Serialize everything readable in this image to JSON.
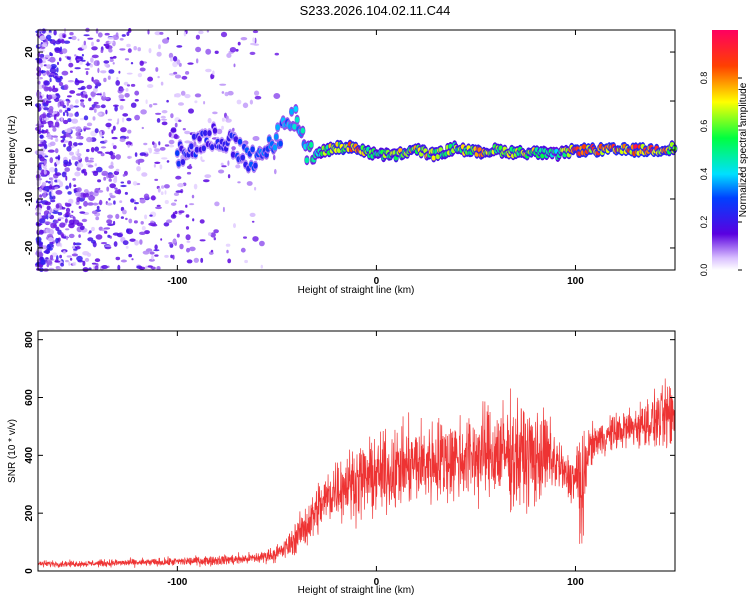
{
  "title": "S233.2026.104.02.11.C44",
  "chart_data": [
    {
      "type": "heatmap",
      "xlabel": "Height of straight line (km)",
      "ylabel": "Frequency (Hz)",
      "xlim": [
        -170,
        150
      ],
      "ylim": [
        -24.5,
        24.5
      ],
      "x_ticks": [
        -100,
        0,
        100
      ],
      "y_ticks": [
        -20,
        -10,
        0,
        10,
        20
      ],
      "colorbar": {
        "label": "Normalized spectral amplitude",
        "range": [
          0,
          1
        ],
        "ticks": [
          0,
          0.2,
          0.4,
          0.6,
          0.8
        ],
        "tick_labels": [
          "0.0",
          "0.2",
          "0.4",
          "0.6",
          "0.8"
        ]
      },
      "ridge": {
        "x": [
          -100,
          -80,
          -70,
          -60,
          -50,
          -40,
          -35,
          -30,
          -20,
          -10,
          0,
          10,
          20,
          30,
          40,
          50,
          60,
          70,
          80,
          90,
          100,
          110,
          120,
          130,
          140,
          150
        ],
        "freq": [
          -0.5,
          3,
          0,
          -3,
          3,
          7,
          0,
          -0.5,
          0.5,
          0.5,
          -1,
          -1,
          0,
          -1,
          0.5,
          -0.5,
          0,
          -0.5,
          -0.5,
          -1,
          0,
          0,
          0,
          0,
          0,
          0.5
        ],
        "amplitude": [
          0.3,
          0.25,
          0.3,
          0.35,
          0.4,
          0.45,
          0.5,
          0.55,
          0.85,
          0.9,
          0.6,
          0.75,
          0.8,
          0.75,
          0.7,
          0.85,
          0.7,
          0.75,
          0.75,
          0.55,
          0.95,
          0.97,
          0.97,
          0.97,
          0.95,
          0.8
        ]
      }
    },
    {
      "type": "line",
      "xlabel": "Height of straight line (km)",
      "ylabel": "SNR (10 * v/v)",
      "xlim": [
        -170,
        150
      ],
      "ylim": [
        0,
        830
      ],
      "x_ticks": [
        -100,
        0,
        100
      ],
      "y_ticks": [
        0,
        200,
        400,
        600,
        800
      ],
      "series": [
        {
          "color": "#ee3333",
          "x": [
            -170,
            -150,
            -130,
            -110,
            -90,
            -70,
            -60,
            -50,
            -45,
            -40,
            -35,
            -30,
            -25,
            -20,
            -15,
            -10,
            -5,
            0,
            10,
            20,
            30,
            40,
            50,
            60,
            70,
            80,
            85,
            90,
            95,
            100,
            102,
            104,
            106,
            110,
            120,
            130,
            140,
            150
          ],
          "mean": [
            25,
            25,
            28,
            30,
            35,
            40,
            45,
            60,
            80,
            120,
            160,
            210,
            250,
            290,
            300,
            310,
            320,
            330,
            350,
            370,
            380,
            390,
            400,
            410,
            400,
            390,
            400,
            380,
            330,
            320,
            320,
            250,
            420,
            450,
            480,
            500,
            520,
            540
          ],
          "spread": [
            12,
            12,
            14,
            15,
            18,
            20,
            22,
            30,
            45,
            60,
            80,
            100,
            110,
            120,
            120,
            130,
            140,
            140,
            150,
            150,
            160,
            160,
            170,
            180,
            200,
            180,
            160,
            120,
            80,
            100,
            300,
            200,
            80,
            60,
            70,
            80,
            100,
            150
          ]
        }
      ]
    }
  ]
}
